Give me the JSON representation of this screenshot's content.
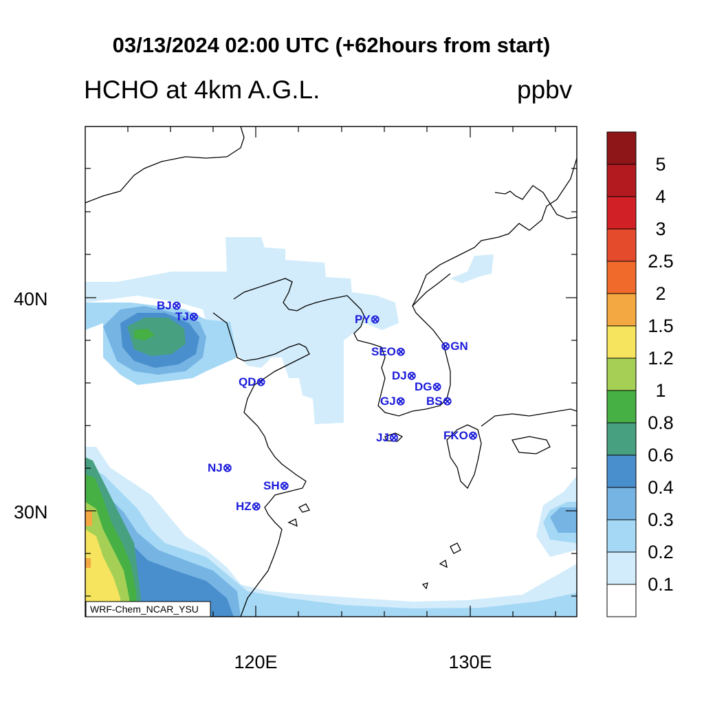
{
  "header": {
    "title": "03/13/2024 02:00 UTC (+62hours from start)",
    "variable": "HCHO at 4km A.G.L.",
    "units": "ppbv"
  },
  "axes": {
    "lat_labels": [
      "40N",
      "30N"
    ],
    "lon_labels": [
      "120E",
      "130E"
    ]
  },
  "map": {
    "credit": "WRF-Chem_NCAR_YSU",
    "stations": [
      {
        "code": "BJ",
        "label": "BJ⊗"
      },
      {
        "code": "TJ",
        "label": "TJ⊗"
      },
      {
        "code": "QD",
        "label": "QD⊗"
      },
      {
        "code": "NJ",
        "label": "NJ⊗"
      },
      {
        "code": "SH",
        "label": "SH⊗"
      },
      {
        "code": "HZ",
        "label": "HZ⊗"
      },
      {
        "code": "PY",
        "label": "PY⊗"
      },
      {
        "code": "SEO",
        "label": "SEO⊗"
      },
      {
        "code": "GN",
        "label": "⊗GN"
      },
      {
        "code": "DJ",
        "label": "DJ⊗"
      },
      {
        "code": "DG",
        "label": "DG⊗"
      },
      {
        "code": "GJ",
        "label": "GJ⊗"
      },
      {
        "code": "BS",
        "label": "BS⊗"
      },
      {
        "code": "JJ",
        "label": "JJ⊗"
      },
      {
        "code": "FKO",
        "label": "FKO⊗"
      }
    ]
  },
  "colorbar": {
    "labels": [
      "5",
      "4",
      "3",
      "2.5",
      "2",
      "1.5",
      "1.2",
      "1",
      "0.8",
      "0.6",
      "0.4",
      "0.3",
      "0.2",
      "0.1"
    ],
    "colors_top_to_bottom": [
      "#8e1518",
      "#b31a1f",
      "#d22027",
      "#e44a2c",
      "#f06b2b",
      "#f4a842",
      "#f7e45e",
      "#a6d055",
      "#47b044",
      "#47a080",
      "#4a8fcd",
      "#76b4e4",
      "#a5d8f5",
      "#d2ecfb",
      "#ffffff"
    ]
  }
}
